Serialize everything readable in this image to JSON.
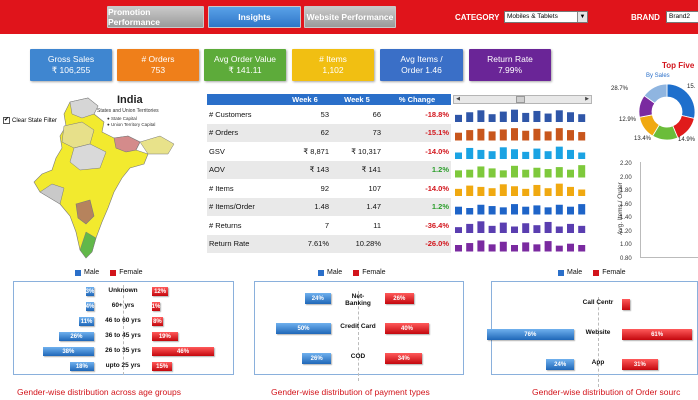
{
  "nav": {
    "promotion": "Promotion Performance",
    "insights": "Insights",
    "website": "Website Performance",
    "category_label": "CATEGORY",
    "category_value": "Mobiles & Tablets",
    "brand_label": "BRAND",
    "brand_value": "Brand2"
  },
  "kpis": [
    {
      "label": "Gross Sales",
      "value": "₹ 106,255",
      "color": "#3f86d0"
    },
    {
      "label": "# Orders",
      "value": "753",
      "color": "#ef7f1a"
    },
    {
      "label": "Avg Order Value",
      "value": "₹ 141.11",
      "color": "#5dab3a"
    },
    {
      "label": "# Items",
      "value": "1,102",
      "color": "#f1bf12"
    },
    {
      "label": "Avg Items /",
      "value": "Order 1.46",
      "color": "#3a6fc7"
    },
    {
      "label": "Return Rate",
      "value": "7.99%",
      "color": "#6a2597"
    }
  ],
  "map": {
    "title": "India",
    "subtitle": "States and Union Territories",
    "legend_state_capital": "● State Capital",
    "legend_ut_capital": "● Union Territory Capital",
    "clear_filter": "Clear State Filter",
    "clear_filter_checked": "✔"
  },
  "metrics": {
    "headers": [
      "",
      "Week 6",
      "Week 5",
      "% Change"
    ],
    "rows": [
      {
        "name": "# Customers",
        "w6": "53",
        "w5": "66",
        "chg": "-18.8%",
        "trend": "neg",
        "color": "#2f56a8",
        "spark": [
          0.55,
          0.75,
          0.9,
          0.6,
          0.8,
          0.95,
          0.7,
          0.85,
          0.65,
          0.9,
          0.75,
          0.6
        ]
      },
      {
        "name": "# Orders",
        "w6": "62",
        "w5": "73",
        "chg": "-15.1%",
        "trend": "neg",
        "color": "#c8561c",
        "spark": [
          0.6,
          0.8,
          0.9,
          0.7,
          0.85,
          0.95,
          0.75,
          0.9,
          0.7,
          0.95,
          0.8,
          0.65
        ]
      },
      {
        "name": "GSV",
        "w6": "₹ 8,871",
        "w5": "₹ 10,317",
        "chg": "-14.0%",
        "trend": "neg",
        "color": "#1ba3e3",
        "spark": [
          0.5,
          0.85,
          0.7,
          0.6,
          0.9,
          0.75,
          0.55,
          0.8,
          0.6,
          0.95,
          0.7,
          0.5
        ]
      },
      {
        "name": "AOV",
        "w6": "₹ 143",
        "w5": "₹ 141",
        "chg": "1.2%",
        "trend": "pos",
        "color": "#7ec93c",
        "spark": [
          0.55,
          0.6,
          0.85,
          0.7,
          0.55,
          0.9,
          0.6,
          0.75,
          0.65,
          0.8,
          0.6,
          0.95
        ]
      },
      {
        "name": "# Items",
        "w6": "92",
        "w7": "",
        "w5": "107",
        "chg": "-14.0%",
        "trend": "neg",
        "color": "#f0a911",
        "spark": [
          0.55,
          0.8,
          0.7,
          0.6,
          0.9,
          0.75,
          0.55,
          0.85,
          0.6,
          0.95,
          0.7,
          0.5
        ]
      },
      {
        "name": "# Items/Order",
        "w6": "1.48",
        "w5": "1.47",
        "chg": "1.2%",
        "trend": "pos",
        "color": "#1e64c8",
        "spark": [
          0.6,
          0.5,
          0.75,
          0.65,
          0.55,
          0.8,
          0.6,
          0.7,
          0.55,
          0.75,
          0.6,
          0.8
        ]
      },
      {
        "name": "# Returns",
        "w6": "7",
        "w5": "11",
        "chg": "-36.4%",
        "trend": "neg",
        "color": "#5a3eb0",
        "spark": [
          0.45,
          0.7,
          0.9,
          0.55,
          0.8,
          0.5,
          0.75,
          0.6,
          0.85,
          0.5,
          0.7,
          0.55
        ]
      },
      {
        "name": "Return Rate",
        "w6": "7.61%",
        "w5": "10.28%",
        "chg": "-26.0%",
        "trend": "neg",
        "color": "#7a2aa0",
        "spark": [
          0.5,
          0.65,
          0.85,
          0.55,
          0.75,
          0.5,
          0.7,
          0.55,
          0.8,
          0.45,
          0.6,
          0.5
        ]
      }
    ]
  },
  "right": {
    "title": "Top Five",
    "subtitle": "By Sales",
    "donut": [
      {
        "label": "28.7%",
        "value": 28.7,
        "color": "#1e6fcc"
      },
      {
        "label": "15.",
        "value": 15.0,
        "color": "#e01b1b"
      },
      {
        "label": "14.9%",
        "value": 14.9,
        "color": "#6bbd3a"
      },
      {
        "label": "13.4%",
        "value": 13.4,
        "color": "#f0a911"
      },
      {
        "label": "12.9%",
        "value": 12.9,
        "color": "#7a2aa0"
      },
      {
        "label": "",
        "value": 15.1,
        "color": "#8fb5e0"
      }
    ],
    "y_ticks": [
      "2.20",
      "2.00",
      "1.80",
      "1.60",
      "1.40",
      "1.20",
      "1.00",
      "0.80"
    ],
    "y_title": "Avg. Items / Order"
  },
  "age": {
    "title": "Gender-wise distribution across age groups",
    "legend_male": "Male",
    "legend_female": "Female",
    "rows": [
      {
        "label": "Unknown",
        "male": "3%",
        "female": "12%",
        "m": 3,
        "f": 12
      },
      {
        "label": "60+ yrs",
        "male": "4%",
        "female": "1%",
        "m": 4,
        "f": 1
      },
      {
        "label": "46 to 60 yrs",
        "male": "11%",
        "female": "8%",
        "m": 11,
        "f": 8
      },
      {
        "label": "36 to 45 yrs",
        "male": "26%",
        "female": "19%",
        "m": 26,
        "f": 19
      },
      {
        "label": "26 to 35 yrs",
        "male": "38%",
        "female": "46%",
        "m": 38,
        "f": 46
      },
      {
        "label": "upto 25 yrs",
        "male": "18%",
        "female": "15%",
        "m": 18,
        "f": 15
      }
    ]
  },
  "payment": {
    "title": "Gender-wise distribution of payment types",
    "legend_male": "Male",
    "legend_female": "Female",
    "rows": [
      {
        "label": "Net-\nBanking",
        "male": "24%",
        "female": "26%",
        "m": 24,
        "f": 26
      },
      {
        "label": "Credit Card",
        "male": "50%",
        "female": "40%",
        "m": 50,
        "f": 40
      },
      {
        "label": "COD",
        "male": "26%",
        "female": "34%",
        "m": 26,
        "f": 34
      }
    ]
  },
  "source": {
    "title": "Gender-wise distribution of Order sourc",
    "legend_male": "Male",
    "legend_female": "Female",
    "rows": [
      {
        "label": "Call Centr",
        "male": "",
        "female": "",
        "m": 0,
        "f": 2
      },
      {
        "label": "Website",
        "male": "76%",
        "female": "61%",
        "m": 76,
        "f": 61
      },
      {
        "label": "App",
        "male": "24%",
        "female": "31%",
        "m": 24,
        "f": 31
      }
    ]
  }
}
